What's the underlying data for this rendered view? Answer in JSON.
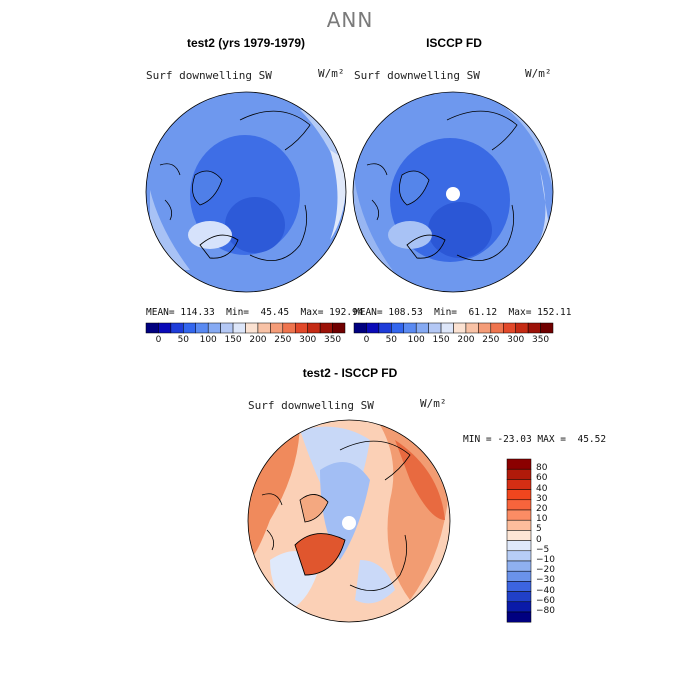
{
  "title": "ANN",
  "panels": [
    {
      "title": "test2 (yrs 1979-1979)",
      "variable": "Surf downwelling SW",
      "units": "W/m²",
      "stats": {
        "mean": "114.33",
        "min": "45.45",
        "max": "192.94"
      }
    },
    {
      "title": "ISCCP FD",
      "variable": "Surf downwelling SW",
      "units": "W/m²",
      "stats": {
        "mean": "108.53",
        "min": "61.12",
        "max": "152.11"
      }
    }
  ],
  "diff_panel": {
    "title": "test2 - ISCCP FD",
    "variable": "Surf downwelling SW",
    "units": "W/m²",
    "stats": {
      "min": "-23.03",
      "max": "45.52"
    }
  },
  "labels": {
    "mean": "MEAN=",
    "min": "Min=",
    "max": "Max=",
    "diff_min": "MIN =",
    "diff_max": "MAX ="
  },
  "abs_colorbar": {
    "ticks": [
      "0",
      "50",
      "100",
      "150",
      "200",
      "250",
      "300",
      "350"
    ],
    "colors": [
      "#00007f",
      "#0a0ab8",
      "#1e3cd9",
      "#3366ee",
      "#5a8af2",
      "#86aaf3",
      "#b4c8f5",
      "#dde6f9",
      "#fbe2d2",
      "#f8c2a6",
      "#f49c78",
      "#ee744e",
      "#e2492a",
      "#c52b14",
      "#9c1208",
      "#700000"
    ]
  },
  "diff_colorbar": {
    "ticks": [
      "80",
      "60",
      "40",
      "30",
      "20",
      "10",
      "5",
      "0",
      "−5",
      "−10",
      "−20",
      "−30",
      "−40",
      "−60",
      "−80"
    ],
    "colors": [
      "#8b0000",
      "#b01a0a",
      "#d42e14",
      "#f0461e",
      "#f8643c",
      "#fb8c64",
      "#fdbd9c",
      "#fde6d6",
      "#dfe9fb",
      "#b7cdf6",
      "#8fb0f0",
      "#6a92ea",
      "#3c64e0",
      "#2040c8",
      "#0a1aa8",
      "#000080"
    ]
  }
}
